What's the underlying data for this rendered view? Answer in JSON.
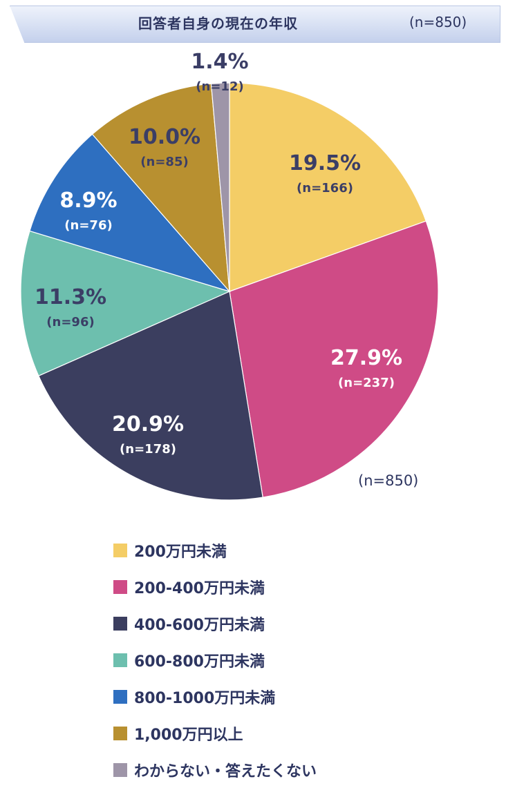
{
  "header": {
    "title": "回答者自身の現在の年収",
    "sample": "(n=850)"
  },
  "sample_note": "(n=850)",
  "chart_data": {
    "type": "pie",
    "title": "回答者自身の現在の年収",
    "start_angle_deg": 0,
    "direction": "clockwise",
    "legend_position": "bottom",
    "slices": [
      {
        "label": "200万円未満",
        "value": 19.5,
        "pct_label": "19.5%",
        "n_label": "(n=166)",
        "color": "#f4cd66",
        "text_color": "#3b3e66"
      },
      {
        "label": "200-400万円未満",
        "value": 27.9,
        "pct_label": "27.9%",
        "n_label": "(n=237)",
        "color": "#cf4b86",
        "text_color": "#ffffff"
      },
      {
        "label": "400-600万円未満",
        "value": 20.9,
        "pct_label": "20.9%",
        "n_label": "(n=178)",
        "color": "#3b3e5f",
        "text_color": "#ffffff"
      },
      {
        "label": "600-800万円未満",
        "value": 11.3,
        "pct_label": "11.3%",
        "n_label": "(n=96)",
        "color": "#6dbfae",
        "text_color": "#3b3e66"
      },
      {
        "label": "800-1000万円未満",
        "value": 8.9,
        "pct_label": "8.9%",
        "n_label": "(n=76)",
        "color": "#2e6fc0",
        "text_color": "#ffffff"
      },
      {
        "label": "1,000万円以上",
        "value": 10.0,
        "pct_label": "10.0%",
        "n_label": "(n=85)",
        "color": "#b89030",
        "text_color": "#3b3e66"
      },
      {
        "label": "わからない・答えたくない",
        "value": 1.4,
        "pct_label": "1.4%",
        "n_label": "(n=12)",
        "color": "#9e95a8",
        "text_color": "#3b3e66"
      }
    ]
  }
}
